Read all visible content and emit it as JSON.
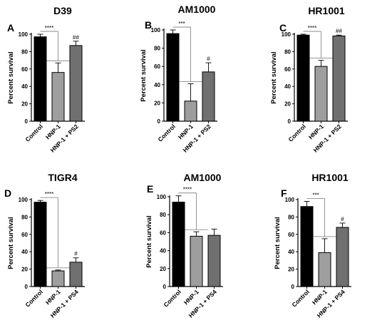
{
  "colors": {
    "control": "#000000",
    "treated": "#9e9e9e",
    "treated_inhibitor": "#707070",
    "sig_line": "#8a8a8a",
    "axis": "#000000"
  },
  "chart_data": [
    {
      "type": "bar",
      "letter": "A",
      "title": "D39",
      "ylabel": "Percent survival",
      "ylim": [
        0,
        100
      ],
      "yticks": [
        0,
        20,
        40,
        60,
        80,
        100
      ],
      "categories": [
        "Control",
        "HNP-1",
        "HNP-1 + PS2"
      ],
      "values": [
        97,
        56,
        87
      ],
      "errors": [
        3,
        11,
        5
      ],
      "significance": [
        {
          "label": "****",
          "type": "line",
          "from": 0,
          "to": 1
        },
        {
          "label": "##",
          "type": "above",
          "bar": 2
        }
      ],
      "grid": false
    },
    {
      "type": "bar",
      "letter": "B",
      "title": "AM1000",
      "ylabel": "Percent survival",
      "ylim": [
        0,
        100
      ],
      "yticks": [
        0,
        20,
        40,
        60,
        80,
        100
      ],
      "categories": [
        "Control",
        "HNP-1",
        "HNP-1 + PS2"
      ],
      "values": [
        96,
        22,
        54
      ],
      "errors": [
        4,
        19,
        10
      ],
      "significance": [
        {
          "label": "***",
          "type": "line",
          "from": 0,
          "to": 1
        },
        {
          "label": "#",
          "type": "above",
          "bar": 2
        }
      ],
      "grid": false
    },
    {
      "type": "bar",
      "letter": "C",
      "title": "HR1001",
      "ylabel": "Percent survival",
      "ylim": [
        0,
        100
      ],
      "yticks": [
        0,
        20,
        40,
        60,
        80,
        100
      ],
      "categories": [
        "Control",
        "HNP-1",
        "HNP-1 + PS2"
      ],
      "values": [
        99,
        63,
        98
      ],
      "errors": [
        1,
        7,
        1
      ],
      "significance": [
        {
          "label": "****",
          "type": "line",
          "from": 0,
          "to": 1
        },
        {
          "label": "##",
          "type": "above",
          "bar": 2
        }
      ],
      "grid": false
    },
    {
      "type": "bar",
      "letter": "D",
      "title": "TIGR4",
      "ylabel": "Percent survival",
      "ylim": [
        0,
        100
      ],
      "yticks": [
        0,
        20,
        40,
        60,
        80,
        100
      ],
      "categories": [
        "Control",
        "HNP-1",
        "HNP-1 + PS4"
      ],
      "values": [
        97,
        18,
        28
      ],
      "errors": [
        2,
        1,
        5
      ],
      "significance": [
        {
          "label": "****",
          "type": "line",
          "from": 0,
          "to": 1
        },
        {
          "label": "#",
          "type": "above",
          "bar": 2
        }
      ],
      "grid": false
    },
    {
      "type": "bar",
      "letter": "E",
      "title": "AM1000",
      "ylabel": "Percent survival",
      "ylim": [
        0,
        100
      ],
      "yticks": [
        0,
        20,
        40,
        60,
        80,
        100
      ],
      "categories": [
        "Control",
        "HNP-1",
        "HNP-1 + PS4"
      ],
      "values": [
        94,
        56,
        57
      ],
      "errors": [
        7,
        5,
        7
      ],
      "significance": [
        {
          "label": "****",
          "type": "line",
          "from": 0,
          "to": 1
        }
      ],
      "grid": false
    },
    {
      "type": "bar",
      "letter": "F",
      "title": "HR1001",
      "ylabel": "Percent survival",
      "ylim": [
        0,
        100
      ],
      "yticks": [
        0,
        20,
        40,
        60,
        80,
        100
      ],
      "categories": [
        "Control",
        "HNP-1",
        "HNP-1 + PS4"
      ],
      "values": [
        92,
        39,
        68
      ],
      "errors": [
        6,
        16,
        5
      ],
      "significance": [
        {
          "label": "***",
          "type": "line",
          "from": 0,
          "to": 1
        },
        {
          "label": "#",
          "type": "above",
          "bar": 2
        }
      ],
      "grid": false
    }
  ]
}
